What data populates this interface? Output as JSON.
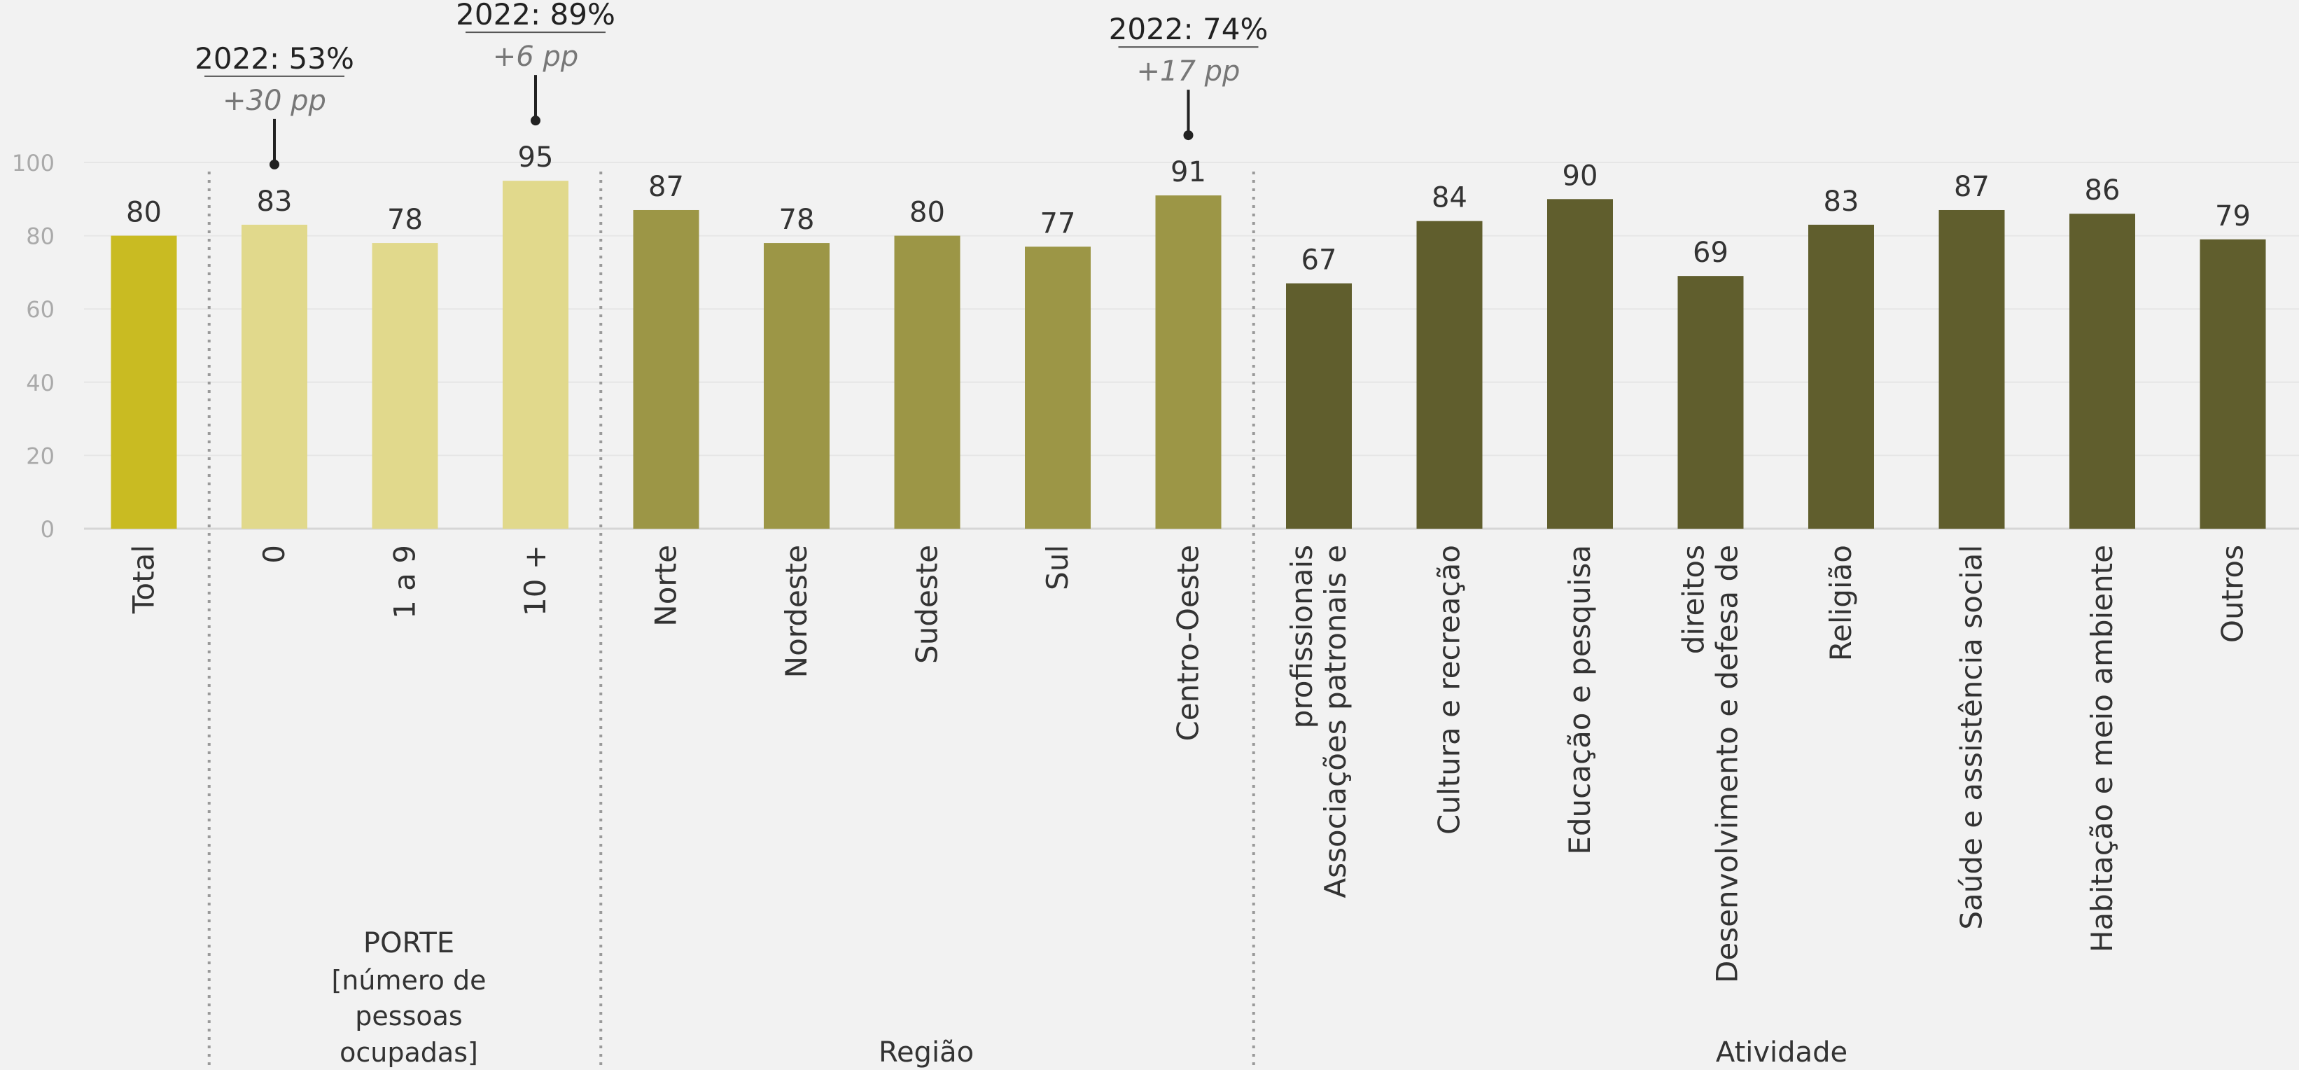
{
  "chart_data": {
    "type": "bar",
    "ylim": [
      0,
      100
    ],
    "yticks": [
      0,
      20,
      40,
      60,
      80,
      100
    ],
    "grid": true,
    "categories": [
      "Total",
      "0",
      "1 a 9",
      "10 +",
      "Norte",
      "Nordeste",
      "Sudeste",
      "Sul",
      "Centro-Oeste",
      "Associações patronais e profissionais",
      "Cultura e recreação",
      "Educação e pesquisa",
      "Desenvolvimento e defesa de direitos",
      "Religião",
      "Saúde e assistência social",
      "Habitação e meio ambiente",
      "Outros"
    ],
    "values": [
      80,
      83,
      78,
      95,
      87,
      78,
      80,
      77,
      91,
      67,
      84,
      90,
      69,
      83,
      87,
      86,
      79
    ],
    "groups": [
      {
        "label": "",
        "color": "#c9bb22",
        "categories": [
          "Total"
        ]
      },
      {
        "label": "PORTE",
        "sublabel": "[número de pessoas ocupadas]",
        "color": "#e1d98c",
        "categories": [
          "0",
          "1 a 9",
          "10 +"
        ]
      },
      {
        "label": "Região",
        "color": "#9c9646",
        "categories": [
          "Norte",
          "Nordeste",
          "Sudeste",
          "Sul",
          "Centro-Oeste"
        ]
      },
      {
        "label": "Atividade",
        "color": "#605e2d",
        "categories": [
          "Associações patronais e profissionais",
          "Cultura e recreação",
          "Educação e pesquisa",
          "Desenvolvimento e defesa de direitos",
          "Religião",
          "Saúde e assistência social",
          "Habitação e meio ambiente",
          "Outros"
        ]
      }
    ],
    "annotations": [
      {
        "category": "0",
        "line1": "2022: 53%",
        "line2": "+30 pp"
      },
      {
        "category": "10 +",
        "line1": "2022: 89%",
        "line2": "+6 pp"
      },
      {
        "category": "Centro-Oeste",
        "line1": "2022: 74%",
        "line2": "+17 pp"
      }
    ]
  },
  "labels": {
    "porte_title": "PORTE",
    "porte_sub1": "[número de",
    "porte_sub2": "pessoas",
    "porte_sub3": "ocupadas]",
    "regiao": "Região",
    "atividade": "Atividade"
  }
}
